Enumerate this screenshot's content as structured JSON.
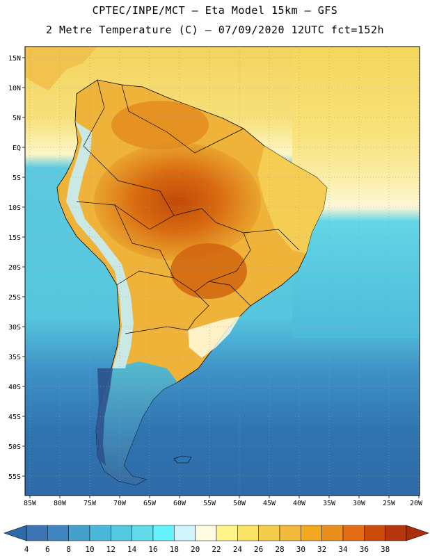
{
  "header": {
    "line1": "CPTEC/INPE/MCT —  Eta Model 15km — GFS",
    "line2": "2 Metre Temperature (C) — 07/09/2020 12UTC fct=152h"
  },
  "map": {
    "lat_ticks": [
      "15N",
      "10N",
      "5N",
      "EQ",
      "5S",
      "10S",
      "15S",
      "20S",
      "25S",
      "30S",
      "35S",
      "40S",
      "45S",
      "50S",
      "55S"
    ],
    "lon_ticks": [
      "85W",
      "80W",
      "75W",
      "70W",
      "65W",
      "60W",
      "55W",
      "50W",
      "45W",
      "40W",
      "35W",
      "30W",
      "25W",
      "20W"
    ],
    "colors": {
      "ocean_far": "#2f73b0",
      "ocean_mid": "#3f92c7",
      "ocean_near": "#57c9de",
      "land_hot": "#d0650e",
      "land_warm": "#e7a12a",
      "land_mild": "#f4d45a",
      "land_cool": "#fbf2a6",
      "andes": "#c6eef7"
    }
  },
  "colorbar": {
    "labels": [
      "4",
      "6",
      "8",
      "10",
      "12",
      "14",
      "16",
      "18",
      "20",
      "22",
      "24",
      "26",
      "28",
      "30",
      "32",
      "34",
      "36",
      "38"
    ],
    "colors": [
      "#3c74b4",
      "#3f86c0",
      "#45a0cc",
      "#4bb8d9",
      "#55c8e2",
      "#62dcea",
      "#66f2fb",
      "#cff4fd",
      "#fffbe2",
      "#fdf58a",
      "#fae468",
      "#f5cd4d",
      "#f2b93a",
      "#f2a81f",
      "#ea8f1c",
      "#e26d12",
      "#cc4a0a",
      "#b5360a"
    ],
    "low_arrow_color": "#2f6aa8",
    "high_arrow_color": "#aa2e0a"
  }
}
